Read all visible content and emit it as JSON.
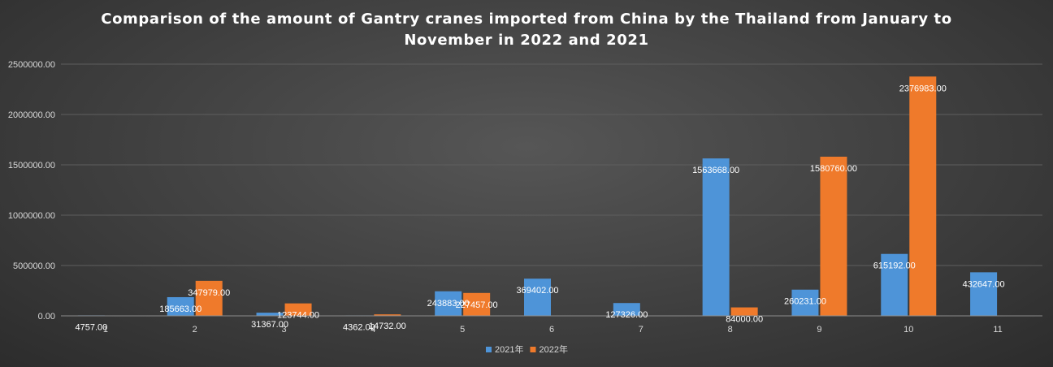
{
  "chart_data": {
    "type": "bar",
    "title": "Comparison of the amount of Gantry cranes imported from China by the Thailand from January to November in 2022 and 2021",
    "title_lines": [
      "Comparison of the amount of Gantry cranes imported from China by the Thailand from January to",
      "November in 2022 and 2021"
    ],
    "xlabel": "",
    "ylabel": "",
    "categories": [
      "1",
      "2",
      "3",
      "4",
      "5",
      "6",
      "7",
      "8",
      "9",
      "10",
      "11"
    ],
    "series": [
      {
        "name": "2021年",
        "color": "#4e94d8",
        "values": [
          4757,
          185663,
          31367,
          4362,
          243883,
          369402,
          127326,
          1563668,
          260231,
          615192,
          432647
        ],
        "labels": [
          "4757.00",
          "185663.00",
          "31367.00",
          "4362.00",
          "243883.00",
          "369402.00",
          "127326.00",
          "1563668.00",
          "260231.00",
          "615192.00",
          "432647.00"
        ]
      },
      {
        "name": "2022年",
        "color": "#ef7a2b",
        "values": [
          null,
          347979,
          123744,
          14732,
          227457,
          null,
          null,
          84000,
          1580760,
          2376983,
          null
        ],
        "labels": [
          "",
          "347979.00",
          "123744.00",
          "14732.00",
          "227457.00",
          "",
          "",
          "84000.00",
          "1580760.00",
          "2376983.00",
          ""
        ]
      }
    ],
    "ylim": [
      0,
      2500000
    ],
    "yticks": [
      0,
      500000,
      1000000,
      1500000,
      2000000,
      2500000
    ],
    "ytick_labels": [
      "0.00",
      "500000.00",
      "1000000.00",
      "1500000.00",
      "2000000.00",
      "2500000.00"
    ],
    "grid": true,
    "legend_position": "bottom"
  }
}
